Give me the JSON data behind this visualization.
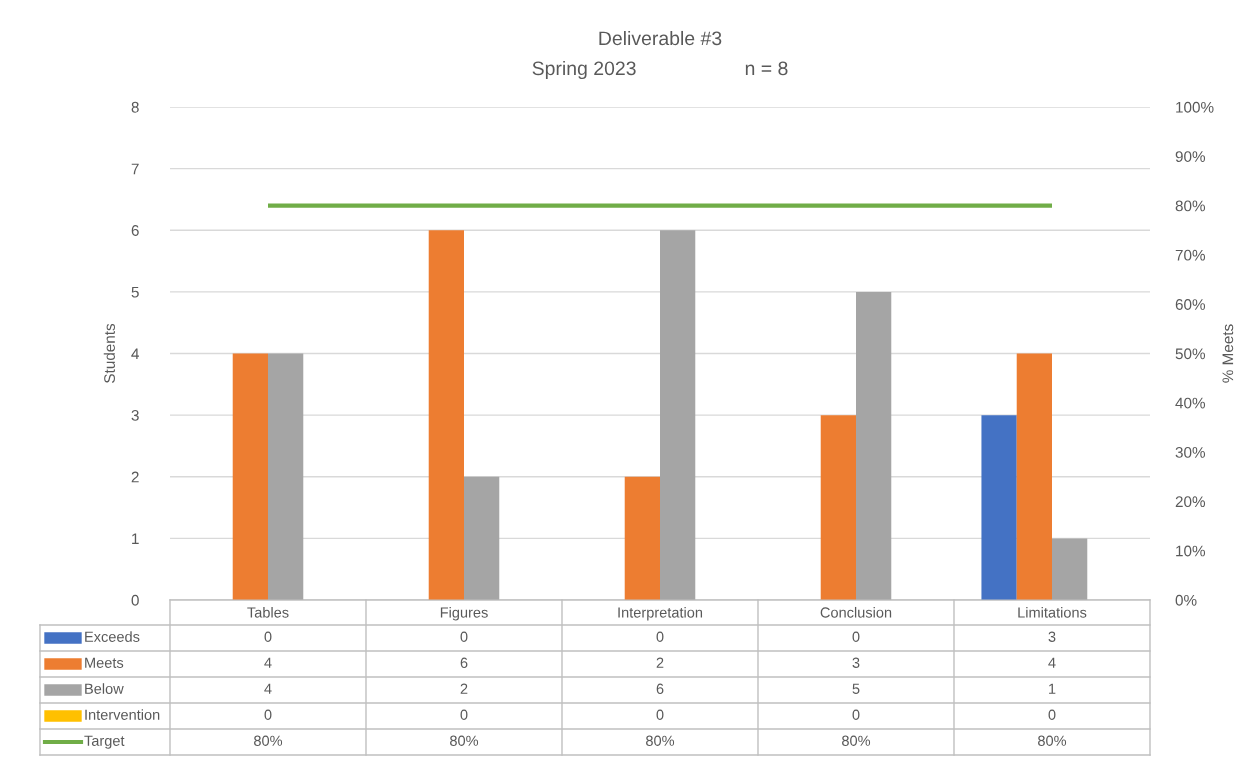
{
  "chart_data": {
    "type": "bar",
    "title": "Deliverable #3",
    "subtitle": "Spring 2023                    n = 8",
    "categories": [
      "Tables",
      "Figures",
      "Interpretation",
      "Conclusion",
      "Limitations"
    ],
    "series": [
      {
        "name": "Exceeds",
        "color": "#4472c4",
        "values": [
          0,
          0,
          0,
          0,
          3
        ]
      },
      {
        "name": "Meets",
        "color": "#ed7d31",
        "values": [
          4,
          6,
          2,
          3,
          4
        ]
      },
      {
        "name": "Below",
        "color": "#a5a5a5",
        "values": [
          4,
          2,
          6,
          5,
          1
        ]
      },
      {
        "name": "Intervention",
        "color": "#ffc000",
        "values": [
          0,
          0,
          0,
          0,
          0
        ]
      },
      {
        "name": "Target",
        "color": "#70ad47",
        "type": "line",
        "axis": "y2",
        "values": [
          80,
          80,
          80,
          80,
          80
        ],
        "value_labels": [
          "80%",
          "80%",
          "80%",
          "80%",
          "80%"
        ]
      }
    ],
    "ylabel": "Students",
    "y2label": "% Meets",
    "ylim": [
      0,
      8
    ],
    "yticks": [
      0,
      1,
      2,
      3,
      4,
      5,
      6,
      7,
      8
    ],
    "y2lim": [
      0,
      100
    ],
    "y2ticks": [
      {
        "value": 0,
        "label": "0%"
      },
      {
        "value": 10,
        "label": "10%"
      },
      {
        "value": 20,
        "label": "20%"
      },
      {
        "value": 30,
        "label": "30%"
      },
      {
        "value": 40,
        "label": "40%"
      },
      {
        "value": 50,
        "label": "50%"
      },
      {
        "value": 60,
        "label": "60%"
      },
      {
        "value": 70,
        "label": "70%"
      },
      {
        "value": 80,
        "label": "80%"
      },
      {
        "value": 90,
        "label": "90%"
      },
      {
        "value": 100,
        "label": "100%"
      }
    ],
    "grid": "y",
    "data_labels": true,
    "legend": "bottom"
  }
}
